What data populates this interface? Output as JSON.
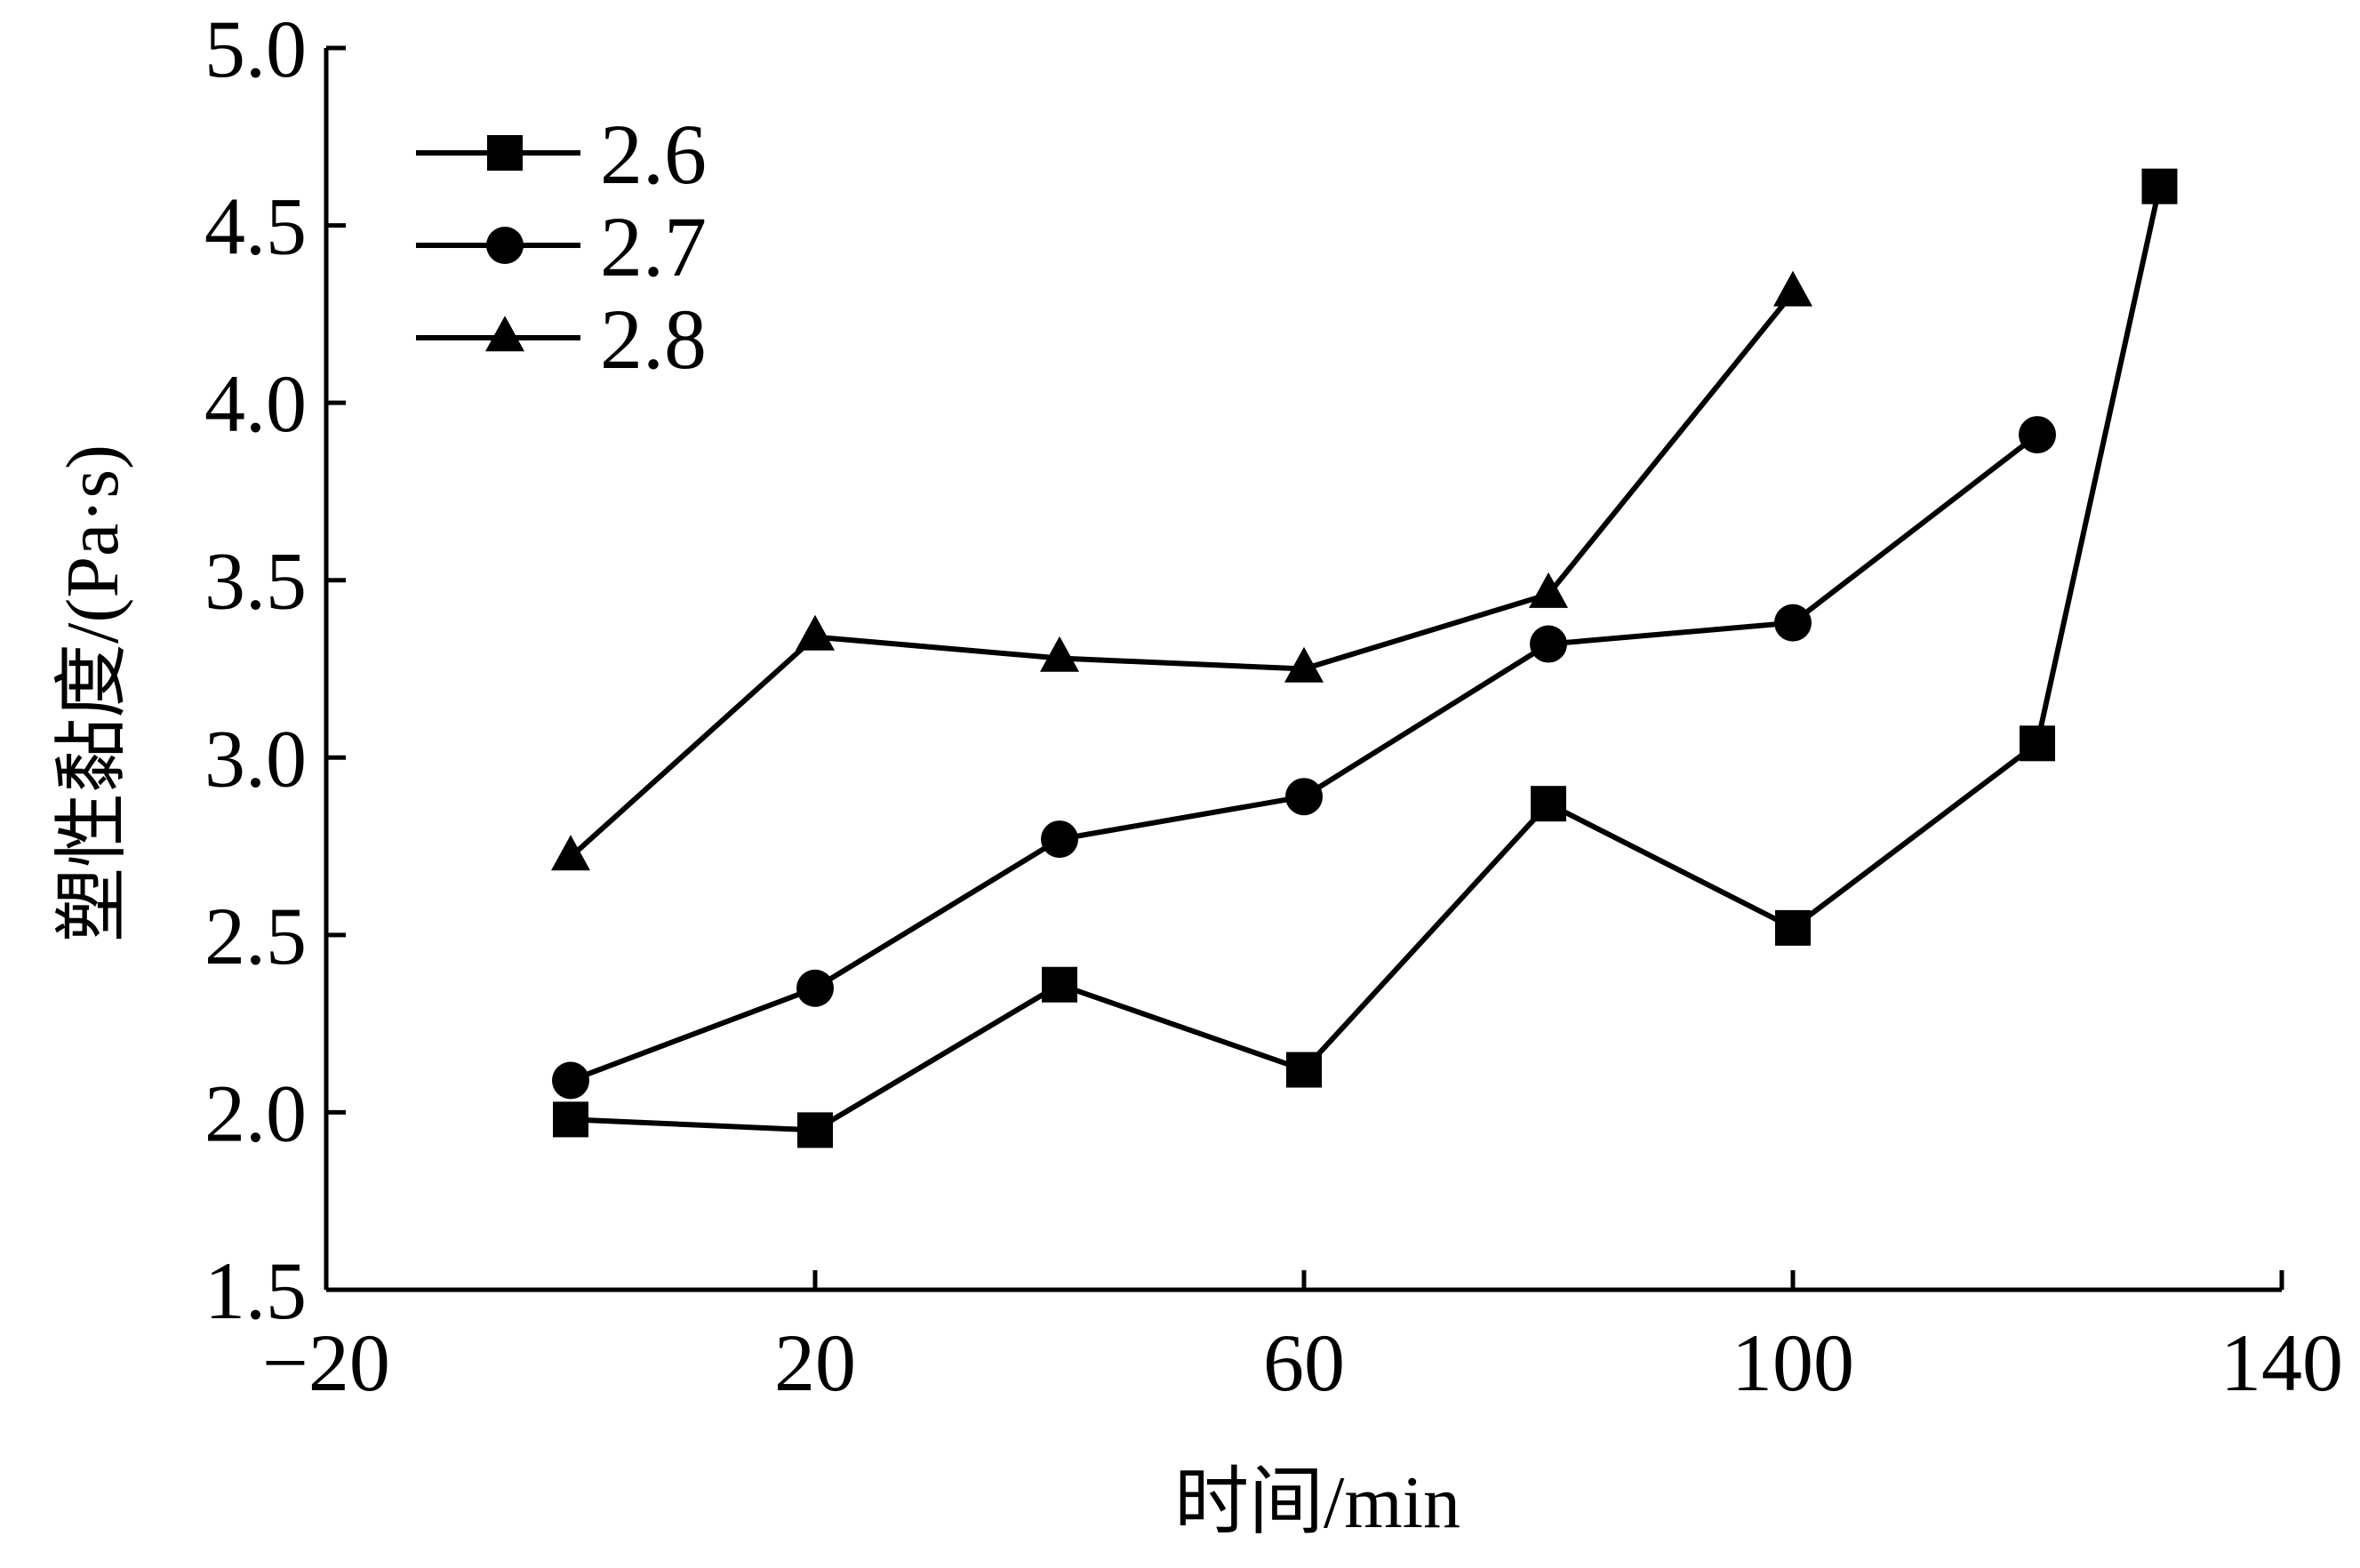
{
  "chart_data": {
    "type": "line",
    "xlabel": "时间/min",
    "ylabel": "塑性黏度/(Pa·s)",
    "xlim": [
      -20,
      140
    ],
    "ylim": [
      1.5,
      5.0
    ],
    "x_ticks": [
      -20,
      20,
      60,
      100,
      140
    ],
    "x_tick_labels": [
      "−20",
      "20",
      "60",
      "100",
      "140"
    ],
    "y_ticks": [
      1.5,
      2.0,
      2.5,
      3.0,
      3.5,
      4.0,
      4.5,
      5.0
    ],
    "y_tick_labels": [
      "1.5",
      "2.0",
      "2.5",
      "3.0",
      "3.5",
      "4.0",
      "4.5",
      "5.0"
    ],
    "grid": false,
    "legend_position": "top-left",
    "series": [
      {
        "name": "2.6",
        "marker": "square",
        "color": "#000000",
        "x": [
          0,
          20,
          40,
          60,
          80,
          100,
          120,
          130
        ],
        "y": [
          1.98,
          1.95,
          2.36,
          2.12,
          2.87,
          2.52,
          3.04,
          4.61
        ]
      },
      {
        "name": "2.7",
        "marker": "circle",
        "color": "#000000",
        "x": [
          0,
          20,
          40,
          60,
          80,
          100,
          120
        ],
        "y": [
          2.09,
          2.35,
          2.77,
          2.89,
          3.32,
          3.38,
          3.91
        ]
      },
      {
        "name": "2.8",
        "marker": "triangle",
        "color": "#000000",
        "x": [
          0,
          20,
          40,
          60,
          80,
          100
        ],
        "y": [
          2.72,
          3.34,
          3.28,
          3.25,
          3.46,
          4.31
        ]
      }
    ]
  }
}
